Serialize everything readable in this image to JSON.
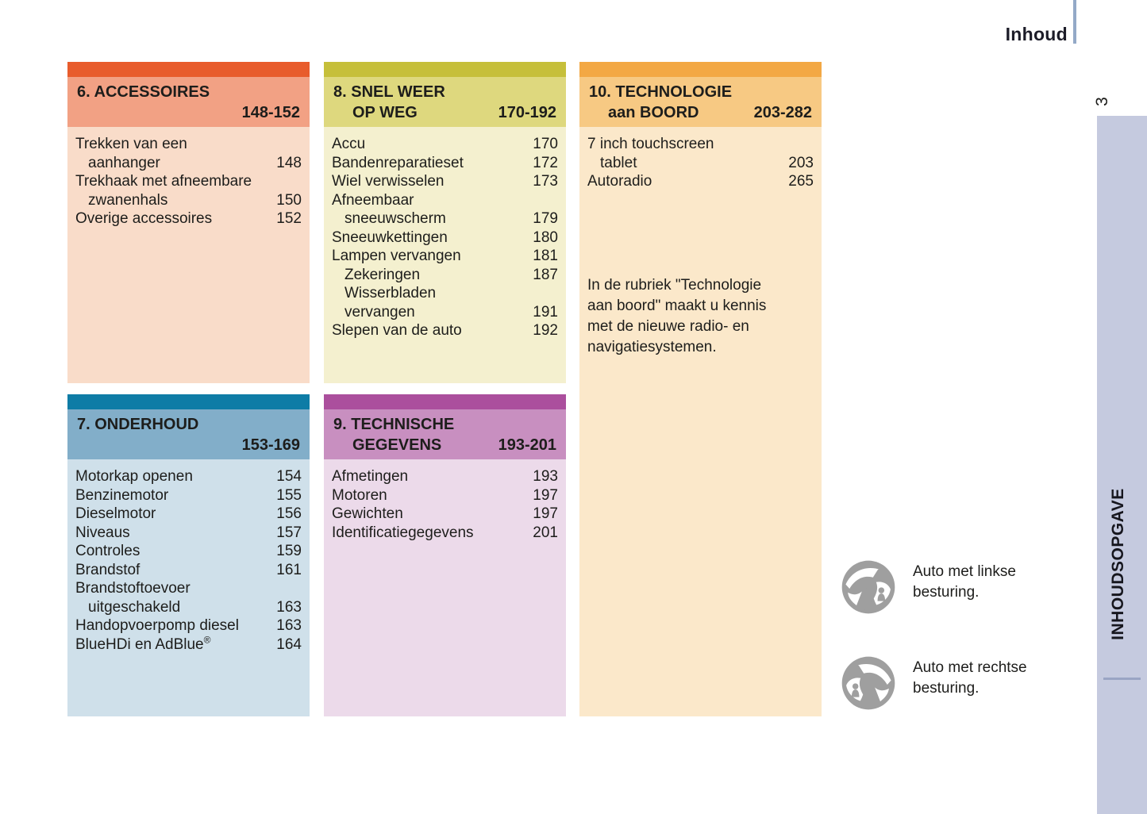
{
  "page": {
    "header_label": "Inhoud",
    "page_number": "3",
    "sidebar_label": "INHOUDSOPGAVE",
    "colors": {
      "sidebar": "#c5cadf",
      "sidebar_divider": "#9aa5c4",
      "header_rule": "#93a9c7",
      "text": "#1d1d1b"
    }
  },
  "sections": [
    {
      "key": "accessoires",
      "slot": "s1",
      "title_line1": "6. ACCESSOIRES",
      "title_line2": "",
      "page_range": "148-152",
      "colors": {
        "strip": "#e85c2c",
        "header": "#f2a184",
        "body": "#f9dcc9"
      },
      "entries": [
        {
          "text": "Trekken van een",
          "page": "",
          "indent": false
        },
        {
          "text": "aanhanger",
          "page": "148",
          "indent": true
        },
        {
          "text": "Trekhaak met afneembare",
          "page": "",
          "indent": false
        },
        {
          "text": "zwanenhals",
          "page": "150",
          "indent": true
        },
        {
          "text": "Overige accessoires",
          "page": "152",
          "indent": false
        }
      ]
    },
    {
      "key": "snel-weer-op-weg",
      "slot": "s2",
      "title_line1": "8. SNEL WEER",
      "title_line2": "OP WEG",
      "page_range": "170-192",
      "colors": {
        "strip": "#c6bf3a",
        "header": "#ded87e",
        "body": "#f4f0cf"
      },
      "entries": [
        {
          "text": "Accu",
          "page": "170",
          "indent": false
        },
        {
          "text": "Bandenreparatieset",
          "page": "172",
          "indent": false
        },
        {
          "text": "Wiel verwisselen",
          "page": "173",
          "indent": false
        },
        {
          "text": "Afneembaar",
          "page": "",
          "indent": false
        },
        {
          "text": "sneeuwscherm",
          "page": "179",
          "indent": true
        },
        {
          "text": "Sneeuwkettingen",
          "page": "180",
          "indent": false
        },
        {
          "text": "Lampen vervangen",
          "page": "181",
          "indent": false
        },
        {
          "text": "Zekeringen",
          "page": "187",
          "indent": true
        },
        {
          "text": "Wisserbladen",
          "page": "",
          "indent": true
        },
        {
          "text": "vervangen",
          "page": "191",
          "indent": true
        },
        {
          "text": "Slepen van de auto",
          "page": "192",
          "indent": false
        }
      ]
    },
    {
      "key": "technologie-aan-boord",
      "slot": "s3",
      "title_line1": "10. TECHNOLOGIE",
      "title_line2": "aan BOORD",
      "page_range": "203-282",
      "colors": {
        "strip": "#f3a844",
        "header": "#f7c983",
        "body": "#fbe8ca"
      },
      "entries": [
        {
          "text": "7 inch touchscreen",
          "page": "",
          "indent": false
        },
        {
          "text": "tablet",
          "page": "203",
          "indent": true
        },
        {
          "text": "Autoradio",
          "page": "265",
          "indent": false
        }
      ],
      "note_lines": [
        "In de rubriek \"Technologie",
        "aan boord\" maakt u kennis",
        "met de nieuwe radio- en",
        "navigatiesystemen."
      ]
    },
    {
      "key": "onderhoud",
      "slot": "s4",
      "title_line1": "7. ONDERHOUD",
      "title_line2": "",
      "page_range": "153-169",
      "colors": {
        "strip": "#0e7ca6",
        "header": "#82aec9",
        "body": "#cfe0ea"
      },
      "entries": [
        {
          "text": "Motorkap openen",
          "page": "154",
          "indent": false
        },
        {
          "text": "Benzinemotor",
          "page": "155",
          "indent": false
        },
        {
          "text": "Dieselmotor",
          "page": "156",
          "indent": false
        },
        {
          "text": "Niveaus",
          "page": "157",
          "indent": false
        },
        {
          "text": "Controles",
          "page": "159",
          "indent": false
        },
        {
          "text": "Brandstof",
          "page": "161",
          "indent": false
        },
        {
          "text": "Brandstoftoevoer",
          "page": "",
          "indent": false
        },
        {
          "text": "uitgeschakeld",
          "page": "163",
          "indent": true
        },
        {
          "text": "Handopvoerpomp diesel",
          "page": "163",
          "indent": false
        },
        {
          "text": "BlueHDi en AdBlue",
          "sup": "®",
          "page": "164",
          "indent": false
        }
      ]
    },
    {
      "key": "technische-gegevens",
      "slot": "s5",
      "title_line1": "9. TECHNISCHE",
      "title_line2": "GEGEVENS",
      "page_range": "193-201",
      "colors": {
        "strip": "#ab4f9d",
        "header": "#c88fc0",
        "body": "#ecdaea"
      },
      "entries": [
        {
          "text": "Afmetingen",
          "page": "193",
          "indent": false
        },
        {
          "text": "Motoren",
          "page": "197",
          "indent": false
        },
        {
          "text": "Gewichten",
          "page": "197",
          "indent": false
        },
        {
          "text": "Identificatiegegevens",
          "page": "201",
          "indent": false
        }
      ]
    }
  ],
  "legend": [
    {
      "icon": "steering-wheel-left-hand-drive-icon",
      "lines": [
        "Auto met linkse",
        "besturing."
      ]
    },
    {
      "icon": "steering-wheel-right-hand-drive-icon",
      "lines": [
        "Auto met rechtse",
        "besturing."
      ]
    }
  ]
}
